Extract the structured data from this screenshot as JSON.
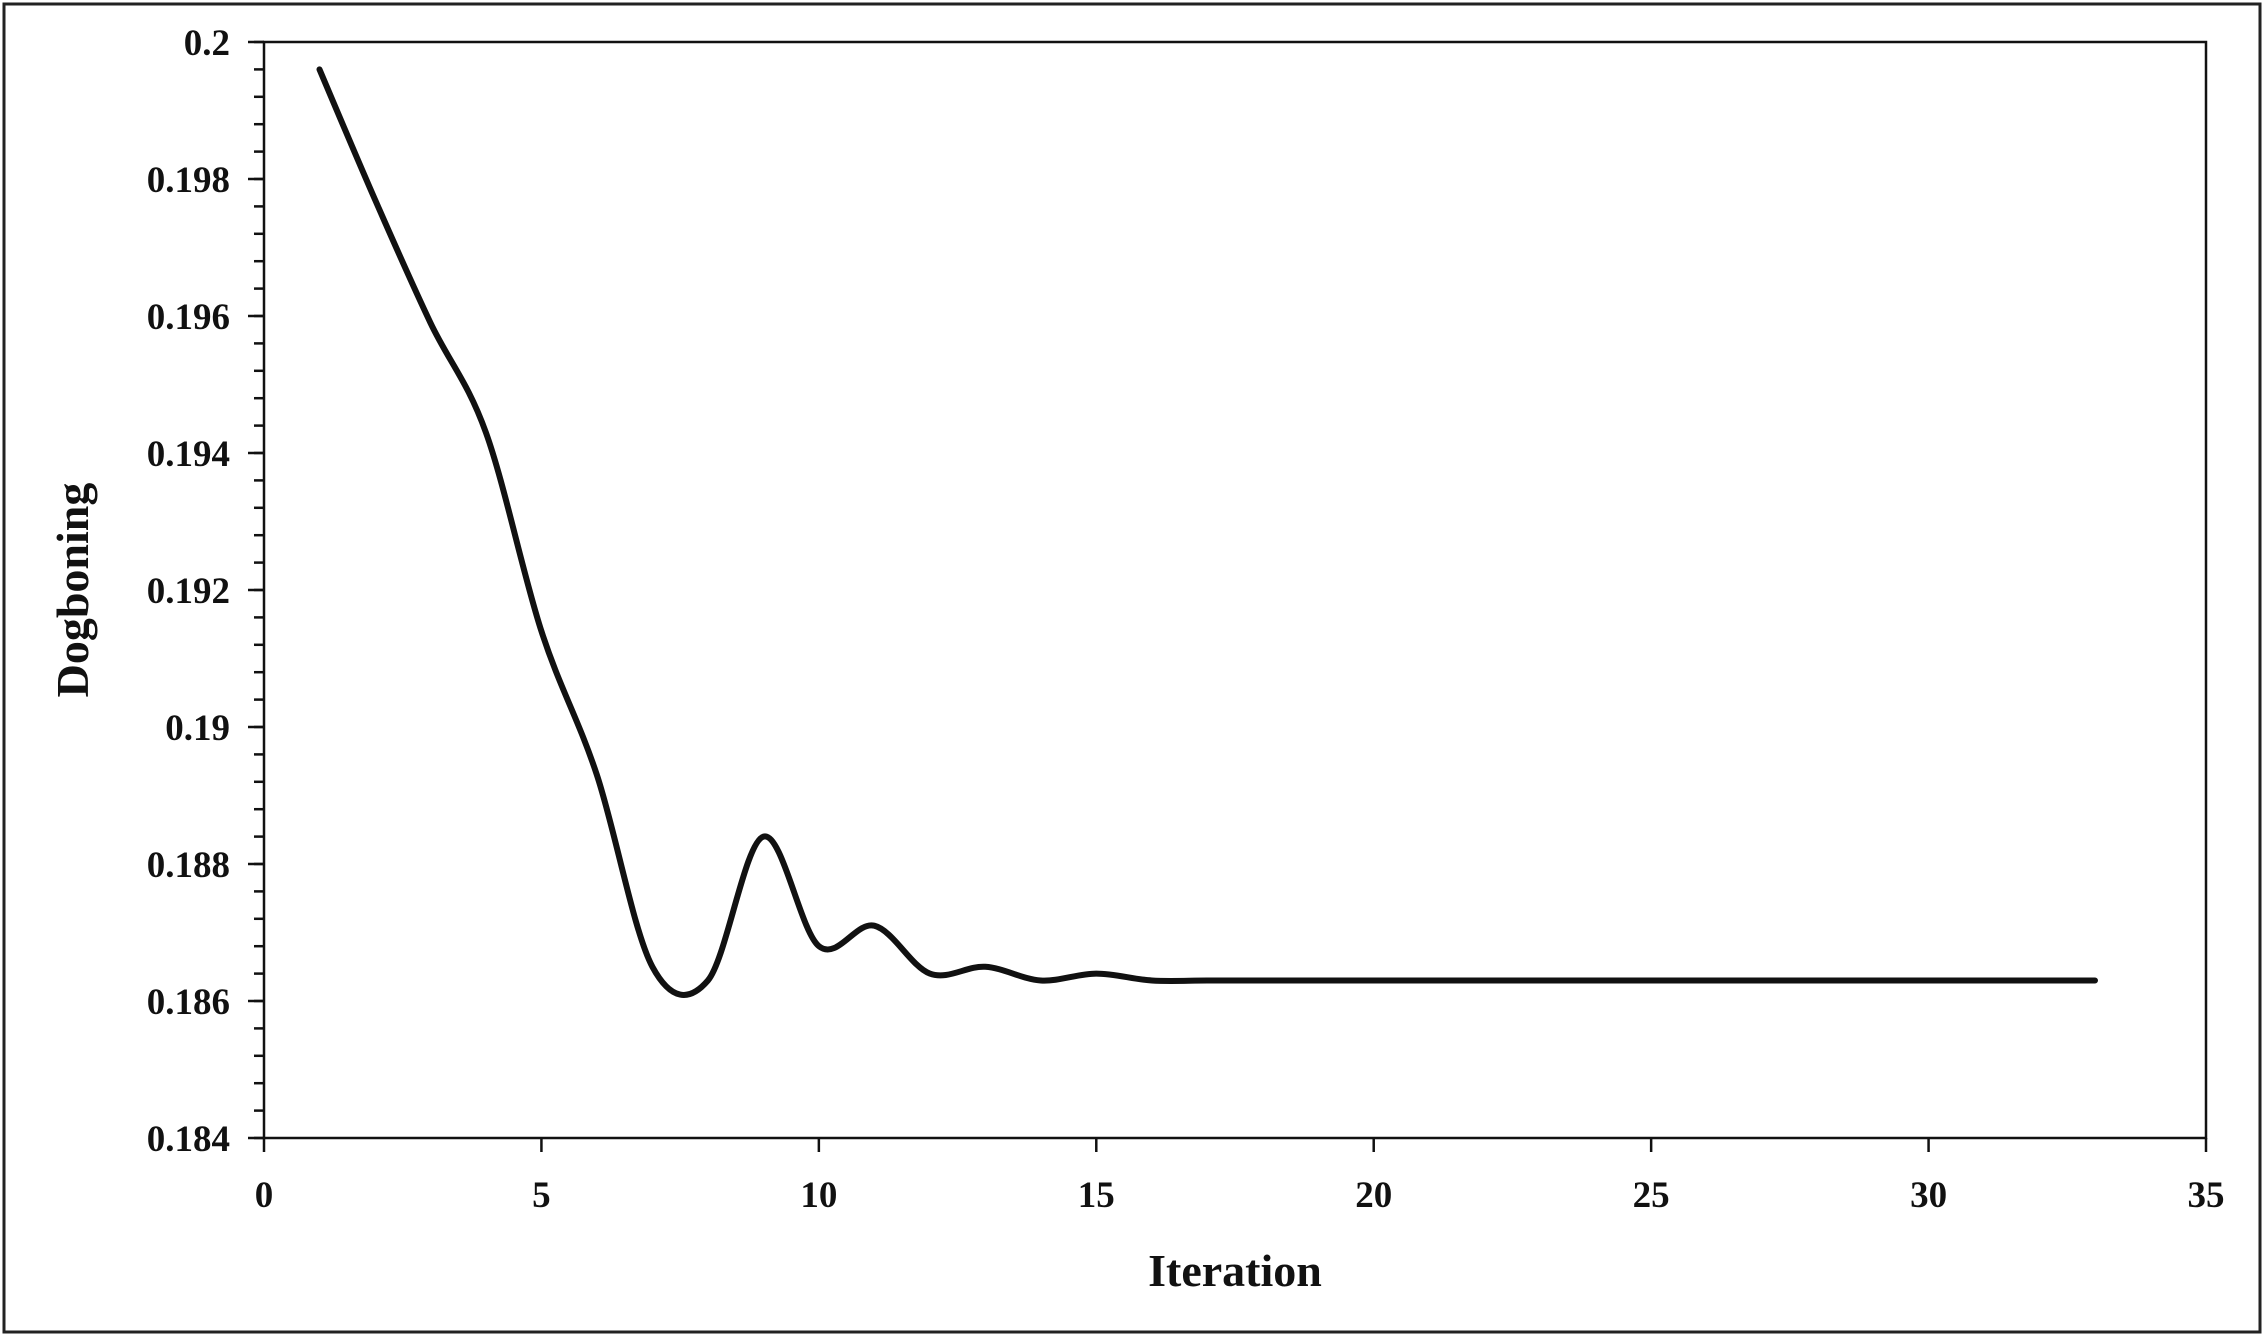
{
  "chart_data": {
    "type": "line",
    "title": "",
    "xlabel": "Iteration",
    "ylabel": "Dogboning",
    "xlim": [
      0,
      35
    ],
    "ylim": [
      0.184,
      0.2
    ],
    "x_major_ticks": [
      0,
      5,
      10,
      15,
      20,
      25,
      30,
      35
    ],
    "x_tick_labels": [
      "0",
      "5",
      "10",
      "15",
      "20",
      "25",
      "30",
      "35"
    ],
    "y_major_ticks": [
      0.184,
      0.186,
      0.188,
      0.19,
      0.192,
      0.194,
      0.196,
      0.198,
      0.2
    ],
    "y_tick_labels": [
      "0.184",
      "0.186",
      "0.188",
      "0.19",
      "0.192",
      "0.194",
      "0.196",
      "0.198",
      "0.2"
    ],
    "y_minor_step": 0.0004,
    "grid": false,
    "legend": "none",
    "colors": {
      "line": "#111111",
      "axes": "#111111",
      "background": "#ffffff"
    },
    "series": [
      {
        "x": [
          1,
          2,
          3,
          4,
          5,
          6,
          7,
          8,
          9,
          10,
          11,
          12,
          13,
          14,
          15,
          16,
          17,
          18,
          19,
          20,
          21,
          22,
          23,
          24,
          25,
          26,
          27,
          28,
          29,
          30,
          31,
          32,
          33
        ],
        "values": [
          0.1996,
          0.1977,
          0.1959,
          0.1943,
          0.1914,
          0.1893,
          0.1865,
          0.1863,
          0.1884,
          0.1868,
          0.1871,
          0.1864,
          0.1865,
          0.1863,
          0.1864,
          0.1863,
          0.1863,
          0.1863,
          0.1863,
          0.1863,
          0.1863,
          0.1863,
          0.1863,
          0.1863,
          0.1863,
          0.1863,
          0.1863,
          0.1863,
          0.1863,
          0.1863,
          0.1863,
          0.1863,
          0.1863
        ]
      }
    ]
  }
}
